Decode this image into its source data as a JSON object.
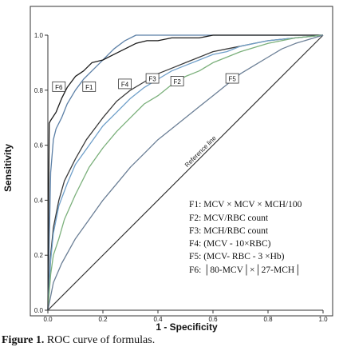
{
  "chart_data": {
    "type": "line",
    "xlabel": "1 - Specificity",
    "ylabel": "Sensitivity",
    "xlim": [
      0,
      1
    ],
    "ylim": [
      0,
      1
    ],
    "x_ticks": [
      "0.0",
      "0.2",
      "0.4",
      "0.6",
      "0.8",
      "1.0"
    ],
    "y_ticks": [
      "0.0",
      "0.2",
      "0.4",
      "0.6",
      "0.8",
      "1.0"
    ],
    "reference_line_label": "Reference line",
    "legend_position": "bottom-right",
    "legend": [
      "F1: MCV × MCV × MCH/100",
      "F2: MCV/RBC count",
      "F3: MCH/RBC count",
      "F4: (MCV - 10×RBC)",
      "F5: (MCV- RBC - 3 ×Hb)",
      "F6: │80-MCV│×│27-MCH│"
    ],
    "series": [
      {
        "name": "F1",
        "color": "#5b7fa6",
        "x": [
          0,
          0.01,
          0.02,
          0.03,
          0.05,
          0.07,
          0.1,
          0.13,
          0.16,
          0.2,
          0.24,
          0.28,
          0.32,
          0.36,
          1.0
        ],
        "y": [
          0,
          0.5,
          0.62,
          0.66,
          0.7,
          0.75,
          0.8,
          0.84,
          0.87,
          0.91,
          0.95,
          0.98,
          1.0,
          1.0,
          1.0
        ],
        "box": {
          "label": "F1",
          "x": 0.15,
          "y": 0.81
        }
      },
      {
        "name": "F6",
        "color": "#1a1a1a",
        "x": [
          0,
          0.005,
          0.01,
          0.03,
          0.05,
          0.07,
          0.1,
          0.13,
          0.16,
          0.2,
          0.24,
          0.28,
          0.32,
          0.36,
          0.4,
          0.45,
          0.5,
          0.55,
          0.6,
          0.65,
          0.7,
          1.0
        ],
        "y": [
          0,
          0.68,
          0.69,
          0.72,
          0.77,
          0.81,
          0.85,
          0.87,
          0.9,
          0.91,
          0.93,
          0.95,
          0.97,
          0.98,
          0.98,
          0.99,
          0.99,
          0.99,
          1.0,
          1.0,
          1.0,
          1.0
        ],
        "box": {
          "label": "F6",
          "x": 0.04,
          "y": 0.81
        }
      },
      {
        "name": "F4",
        "color": "#3a3a3a",
        "x": [
          0,
          0.01,
          0.02,
          0.04,
          0.06,
          0.1,
          0.14,
          0.2,
          0.25,
          0.3,
          0.35,
          0.4,
          0.45,
          0.5,
          0.55,
          0.6,
          0.65,
          0.7,
          0.75,
          0.8,
          0.9,
          1.0
        ],
        "y": [
          0,
          0.2,
          0.3,
          0.4,
          0.47,
          0.55,
          0.62,
          0.7,
          0.76,
          0.8,
          0.83,
          0.86,
          0.88,
          0.9,
          0.92,
          0.94,
          0.95,
          0.96,
          0.97,
          0.98,
          0.99,
          1.0
        ],
        "box": {
          "label": "F4",
          "x": 0.28,
          "y": 0.82
        }
      },
      {
        "name": "F3",
        "color": "#6f9fc9",
        "x": [
          0,
          0.01,
          0.02,
          0.04,
          0.07,
          0.1,
          0.15,
          0.2,
          0.25,
          0.3,
          0.35,
          0.4,
          0.45,
          0.5,
          0.55,
          0.6,
          0.65,
          0.7,
          0.8,
          0.9,
          1.0
        ],
        "y": [
          0,
          0.18,
          0.28,
          0.38,
          0.46,
          0.53,
          0.6,
          0.67,
          0.72,
          0.77,
          0.81,
          0.84,
          0.87,
          0.89,
          0.91,
          0.93,
          0.94,
          0.96,
          0.98,
          0.99,
          1.0
        ],
        "box": {
          "label": "F3",
          "x": 0.38,
          "y": 0.84
        }
      },
      {
        "name": "F2",
        "color": "#7bb07b",
        "x": [
          0,
          0.01,
          0.02,
          0.04,
          0.06,
          0.1,
          0.15,
          0.2,
          0.25,
          0.3,
          0.35,
          0.4,
          0.45,
          0.5,
          0.55,
          0.6,
          0.65,
          0.7,
          0.8,
          0.9,
          1.0
        ],
        "y": [
          0,
          0.13,
          0.2,
          0.26,
          0.33,
          0.42,
          0.52,
          0.59,
          0.65,
          0.7,
          0.75,
          0.78,
          0.82,
          0.85,
          0.87,
          0.9,
          0.92,
          0.94,
          0.97,
          0.99,
          1.0
        ],
        "box": {
          "label": "F2",
          "x": 0.47,
          "y": 0.83
        }
      },
      {
        "name": "F5",
        "color": "#6b7f96",
        "x": [
          0,
          0.01,
          0.02,
          0.05,
          0.1,
          0.15,
          0.2,
          0.25,
          0.3,
          0.35,
          0.4,
          0.45,
          0.5,
          0.55,
          0.6,
          0.65,
          0.7,
          0.75,
          0.8,
          0.85,
          0.9,
          1.0
        ],
        "y": [
          0,
          0.05,
          0.1,
          0.17,
          0.26,
          0.33,
          0.4,
          0.46,
          0.52,
          0.57,
          0.62,
          0.66,
          0.7,
          0.74,
          0.78,
          0.82,
          0.86,
          0.89,
          0.92,
          0.95,
          0.97,
          1.0
        ],
        "box": {
          "label": "F5",
          "x": 0.67,
          "y": 0.84
        }
      }
    ]
  },
  "caption": {
    "label": "Figure 1.",
    "text": " ROC curve of formulas."
  }
}
